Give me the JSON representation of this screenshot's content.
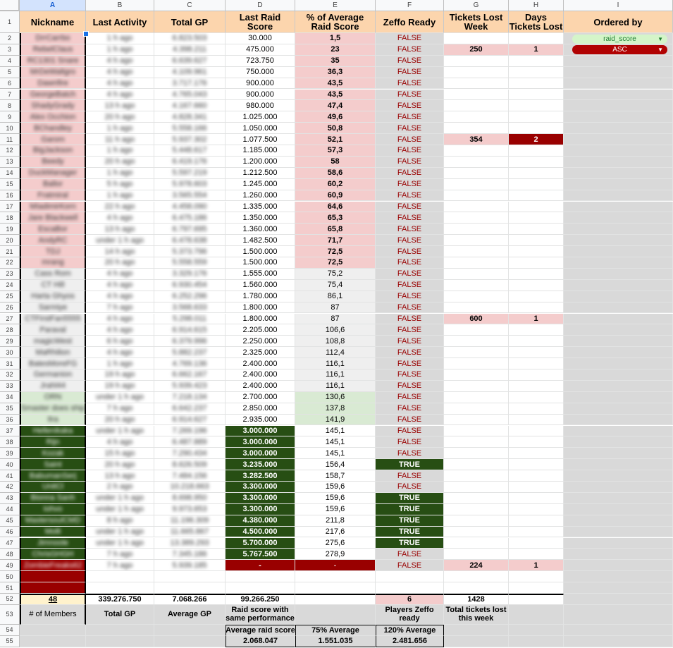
{
  "columns": [
    "A",
    "B",
    "C",
    "D",
    "E",
    "F",
    "G",
    "H",
    "I"
  ],
  "headers": [
    "Nickname",
    "Last Activity",
    "Total GP",
    "Last Raid Score",
    "% of Average Raid Score",
    "Zeffo Ready",
    "Tickets Lost Week",
    "Days Tickets Lost",
    "Ordered by"
  ],
  "filters": [
    {
      "label": "raid_score",
      "bg": "#d4f5c9",
      "fg": "#1e7d32"
    },
    {
      "label": "ASC",
      "bg": "#b10202",
      "fg": "#ffffff"
    }
  ],
  "colors": {
    "pink": "#f4cccc",
    "lightgreen": "#d9ead3",
    "darkgreen": "#274e13",
    "gray": "#d9d9d9",
    "lightgray": "#efefef",
    "darkred": "#990000",
    "falseText": "#990000",
    "blankGray": "#d9d9d9"
  },
  "rows": [
    {
      "n": "2",
      "a": "DrrCarrbo",
      "b": "1 h ago",
      "c": "6.823.503",
      "d": "30.000",
      "e": "1,5",
      "f": "FALSE",
      "g": "",
      "h": ""
    },
    {
      "n": "3",
      "a": "RebelClaus",
      "b": "1 h ago",
      "c": "4.398.211",
      "d": "475.000",
      "e": "23",
      "f": "FALSE",
      "g": "250",
      "h": "1"
    },
    {
      "n": "4",
      "a": "RC1301 Snare",
      "b": "4 h ago",
      "c": "6.639.627",
      "d": "723.750",
      "e": "35",
      "f": "FALSE",
      "g": "",
      "h": ""
    },
    {
      "n": "5",
      "a": "MrDeWaltgro",
      "b": "4 h ago",
      "c": "4.109.961",
      "d": "750.000",
      "e": "36,3",
      "f": "FALSE",
      "g": "",
      "h": ""
    },
    {
      "n": "6",
      "a": "Dawnfire",
      "b": "4 h ago",
      "c": "3.717.176",
      "d": "900.000",
      "e": "43,5",
      "f": "FALSE",
      "g": "",
      "h": ""
    },
    {
      "n": "7",
      "a": "GeorgeBatch",
      "b": "4 h ago",
      "c": "4.765.043",
      "d": "900.000",
      "e": "43,5",
      "f": "FALSE",
      "g": "",
      "h": ""
    },
    {
      "n": "8",
      "a": "ShadyGrady",
      "b": "13 h ago",
      "c": "4.167.660",
      "d": "980.000",
      "e": "47,4",
      "f": "FALSE",
      "g": "",
      "h": ""
    },
    {
      "n": "9",
      "a": "Alex Occhion",
      "b": "20 h ago",
      "c": "4.828.341",
      "d": "1.025.000",
      "e": "49,6",
      "f": "FALSE",
      "g": "",
      "h": ""
    },
    {
      "n": "10",
      "a": "BChandley",
      "b": "1 h ago",
      "c": "5.558.166",
      "d": "1.050.000",
      "e": "50,8",
      "f": "FALSE",
      "g": "",
      "h": ""
    },
    {
      "n": "11",
      "a": "Garom",
      "b": "11 h ago",
      "c": "5.937.302",
      "d": "1.077.500",
      "e": "52,1",
      "f": "FALSE",
      "g": "354",
      "h": "2"
    },
    {
      "n": "12",
      "a": "BigJackson",
      "b": "1 h ago",
      "c": "5.448.617",
      "d": "1.185.000",
      "e": "57,3",
      "f": "FALSE",
      "g": "",
      "h": ""
    },
    {
      "n": "13",
      "a": "Beedy",
      "b": "20 h ago",
      "c": "6.419.176",
      "d": "1.200.000",
      "e": "58",
      "f": "FALSE",
      "g": "",
      "h": ""
    },
    {
      "n": "14",
      "a": "DuckManager",
      "b": "1 h ago",
      "c": "5.597.219",
      "d": "1.212.500",
      "e": "58,6",
      "f": "FALSE",
      "g": "",
      "h": ""
    },
    {
      "n": "15",
      "a": "Ballor",
      "b": "5 h ago",
      "c": "5.978.603",
      "d": "1.245.000",
      "e": "60,2",
      "f": "FALSE",
      "g": "",
      "h": ""
    },
    {
      "n": "16",
      "a": "Fratmiral",
      "b": "1 h ago",
      "c": "3.565.554",
      "d": "1.260.000",
      "e": "60,9",
      "f": "FALSE",
      "g": "",
      "h": ""
    },
    {
      "n": "17",
      "a": "MIadimirKorn",
      "b": "22 h ago",
      "c": "4.458.090",
      "d": "1.335.000",
      "e": "64,6",
      "f": "FALSE",
      "g": "",
      "h": ""
    },
    {
      "n": "18",
      "a": "Jare Blackwell",
      "b": "4 h ago",
      "c": "6.475.186",
      "d": "1.350.000",
      "e": "65,3",
      "f": "FALSE",
      "g": "",
      "h": ""
    },
    {
      "n": "19",
      "a": "EscaBor",
      "b": "13 h ago",
      "c": "6.797.695",
      "d": "1.360.000",
      "e": "65,8",
      "f": "FALSE",
      "g": "",
      "h": ""
    },
    {
      "n": "20",
      "a": "AndyRC",
      "b": "under 1 h ago",
      "c": "6.478.638",
      "d": "1.482.500",
      "e": "71,7",
      "f": "FALSE",
      "g": "",
      "h": ""
    },
    {
      "n": "21",
      "a": "TDJ",
      "b": "14 h ago",
      "c": "5.373.796",
      "d": "1.500.000",
      "e": "72,5",
      "f": "FALSE",
      "g": "",
      "h": ""
    },
    {
      "n": "22",
      "a": "mrang",
      "b": "20 h ago",
      "c": "5.558.559",
      "d": "1.500.000",
      "e": "72,5",
      "f": "FALSE",
      "g": "",
      "h": ""
    },
    {
      "n": "23",
      "a": "Cass Rom",
      "b": "4 h ago",
      "c": "3.329.176",
      "d": "1.555.000",
      "e": "75,2",
      "f": "FALSE",
      "g": "",
      "h": ""
    },
    {
      "n": "24",
      "a": "CT Hill",
      "b": "4 h ago",
      "c": "6.930.454",
      "d": "1.560.000",
      "e": "75,4",
      "f": "FALSE",
      "g": "",
      "h": ""
    },
    {
      "n": "25",
      "a": "Harta Ghyos",
      "b": "4 h ago",
      "c": "6.252.296",
      "d": "1.780.000",
      "e": "86,1",
      "f": "FALSE",
      "g": "",
      "h": ""
    },
    {
      "n": "26",
      "a": "Sarmiye",
      "b": "7 h ago",
      "c": "3.568.633",
      "d": "1.800.000",
      "e": "87",
      "f": "FALSE",
      "g": "",
      "h": ""
    },
    {
      "n": "27",
      "a": "CTFirstFan5555",
      "b": "4 h ago",
      "c": "5.298.011",
      "d": "1.800.000",
      "e": "87",
      "f": "FALSE",
      "g": "600",
      "h": "1"
    },
    {
      "n": "28",
      "a": "Paraval",
      "b": "4 h ago",
      "c": "6.914.615",
      "d": "2.205.000",
      "e": "106,6",
      "f": "FALSE",
      "g": "",
      "h": ""
    },
    {
      "n": "29",
      "a": "magicWest",
      "b": "6 h ago",
      "c": "6.379.996",
      "d": "2.250.000",
      "e": "108,8",
      "f": "FALSE",
      "g": "",
      "h": ""
    },
    {
      "n": "30",
      "a": "MaRhilion",
      "b": "4 h ago",
      "c": "5.882.237",
      "d": "2.325.000",
      "e": "112,4",
      "f": "FALSE",
      "g": "",
      "h": ""
    },
    {
      "n": "31",
      "a": "BatesMoreFG",
      "b": "1 h ago",
      "c": "4.769.136",
      "d": "2.400.000",
      "e": "116,1",
      "f": "FALSE",
      "g": "",
      "h": ""
    },
    {
      "n": "32",
      "a": "Germanion",
      "b": "19 h ago",
      "c": "6.662.167",
      "d": "2.400.000",
      "e": "116,1",
      "f": "FALSE",
      "g": "",
      "h": ""
    },
    {
      "n": "33",
      "a": "Jrahl44",
      "b": "19 h ago",
      "c": "5.939.423",
      "d": "2.400.000",
      "e": "116,1",
      "f": "FALSE",
      "g": "",
      "h": ""
    },
    {
      "n": "34",
      "a": "ORN",
      "b": "under 1 h ago",
      "c": "7.218.134",
      "d": "2.700.000",
      "e": "130,6",
      "f": "FALSE",
      "g": "",
      "h": ""
    },
    {
      "n": "35",
      "a": "Smaster does ship",
      "b": "7 h ago",
      "c": "6.642.237",
      "d": "2.850.000",
      "e": "137,8",
      "f": "FALSE",
      "g": "",
      "h": ""
    },
    {
      "n": "36",
      "a": "Ilra",
      "b": "20 h ago",
      "c": "6.914.627",
      "d": "2.935.000",
      "e": "141,9",
      "f": "FALSE",
      "g": "",
      "h": ""
    },
    {
      "n": "37",
      "a": "Hellenikaka",
      "b": "under 1 h ago",
      "c": "7.269.196",
      "d": "3.000.000",
      "e": "145,1",
      "f": "FALSE",
      "g": "",
      "h": ""
    },
    {
      "n": "38",
      "a": "Rijn",
      "b": "4 h ago",
      "c": "6.487.889",
      "d": "3.000.000",
      "e": "145,1",
      "f": "FALSE",
      "g": "",
      "h": ""
    },
    {
      "n": "39",
      "a": "Kozak",
      "b": "15 h ago",
      "c": "7.290.434",
      "d": "3.000.000",
      "e": "145,1",
      "f": "FALSE",
      "g": "",
      "h": ""
    },
    {
      "n": "40",
      "a": "Saint",
      "b": "20 h ago",
      "c": "8.626.509",
      "d": "3.235.000",
      "e": "156,4",
      "f": "TRUE",
      "g": "",
      "h": ""
    },
    {
      "n": "41",
      "a": "BabumanSerj",
      "b": "13 h ago",
      "c": "7.484.156",
      "d": "3.282.500",
      "e": "158,7",
      "f": "FALSE",
      "g": "",
      "h": ""
    },
    {
      "n": "42",
      "a": "UnitCl",
      "b": "2 h ago",
      "c": "10.218.663",
      "d": "3.300.000",
      "e": "159,6",
      "f": "FALSE",
      "g": "",
      "h": ""
    },
    {
      "n": "43",
      "a": "Bionna Sanh",
      "b": "under 1 h ago",
      "c": "8.698.950",
      "d": "3.300.000",
      "e": "159,6",
      "f": "TRUE",
      "g": "",
      "h": ""
    },
    {
      "n": "44",
      "a": "Iohvo",
      "b": "under 1 h ago",
      "c": "9.973.653",
      "d": "3.300.000",
      "e": "159,6",
      "f": "TRUE",
      "g": "",
      "h": ""
    },
    {
      "n": "45",
      "a": "MastersoulCMD",
      "b": "8 h ago",
      "c": "11.196.309",
      "d": "4.380.000",
      "e": "211,8",
      "f": "TRUE",
      "g": "",
      "h": ""
    },
    {
      "n": "46",
      "a": "Molli",
      "b": "under 1 h ago",
      "c": "11.665.867",
      "d": "4.500.000",
      "e": "217,6",
      "f": "TRUE",
      "g": "",
      "h": ""
    },
    {
      "n": "47",
      "a": "Jimnoole",
      "b": "under 1 h ago",
      "c": "13.389.293",
      "d": "5.700.000",
      "e": "275,6",
      "f": "TRUE",
      "g": "",
      "h": ""
    },
    {
      "n": "48",
      "a": "ChrisGHGH",
      "b": "7 h ago",
      "c": "7.345.186",
      "d": "5.767.500",
      "e": "278,9",
      "f": "FALSE",
      "g": "",
      "h": ""
    },
    {
      "n": "49",
      "a": "ZombieFreaks62",
      "b": "7 h ago",
      "c": "5.939.185",
      "d": "-",
      "e": "-",
      "f": "FALSE",
      "g": "224",
      "h": "1"
    }
  ],
  "summary": {
    "members_count": "48",
    "total_gp": "339.276.750",
    "average_gp": "7.068.266",
    "raid_score_same_perf": "99.266.250",
    "players_zeffo": "6",
    "total_tickets": "1428",
    "lbl_members": "# of Members",
    "lbl_total_gp": "Total GP",
    "lbl_average_gp": "Average GP",
    "lbl_raid_same": "Raid score with same performance",
    "lbl_zeffo": "Players Zeffo ready",
    "lbl_tickets": "Total tickets lost this week",
    "lbl_avg_raid": "Average raid score",
    "lbl_75": "75% Average",
    "lbl_120": "120% Average",
    "avg_raid": "2.068.047",
    "avg_75": "1.551.035",
    "avg_120": "2.481.656"
  },
  "row_numbers_extra": [
    "50",
    "51",
    "52",
    "53",
    "54",
    "55"
  ]
}
